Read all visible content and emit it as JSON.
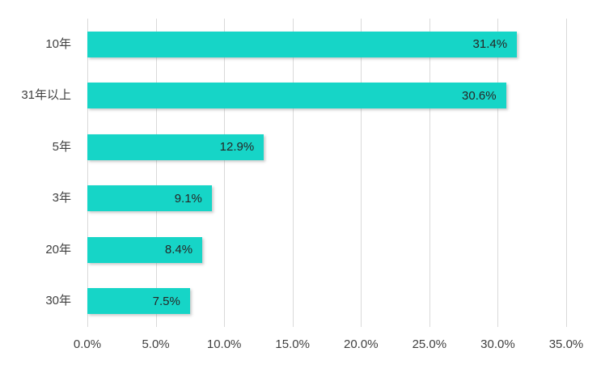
{
  "chart_data": {
    "type": "bar",
    "orientation": "horizontal",
    "title": "",
    "xlabel": "",
    "ylabel": "",
    "categories": [
      "10年",
      "31年以上",
      "5年",
      "3年",
      "20年",
      "30年"
    ],
    "values": [
      31.4,
      30.6,
      12.9,
      9.1,
      8.4,
      7.5
    ],
    "data_labels": [
      "31.4%",
      "30.6%",
      "12.9%",
      "9.1%",
      "8.4%",
      "7.5%"
    ],
    "x_ticks": [
      "0.0%",
      "5.0%",
      "10.0%",
      "15.0%",
      "20.0%",
      "25.0%",
      "30.0%",
      "35.0%"
    ],
    "x_tick_values": [
      0,
      5,
      10,
      15,
      20,
      25,
      30,
      35
    ],
    "xlim": [
      0,
      35
    ],
    "grid": true,
    "legend": false,
    "colors": {
      "bar": "#16D5C7",
      "gridline": "#D9D9D9",
      "category_label": "#404040",
      "axis_label": "#404040",
      "data_label": "#262626",
      "background": "#FFFFFF"
    }
  }
}
